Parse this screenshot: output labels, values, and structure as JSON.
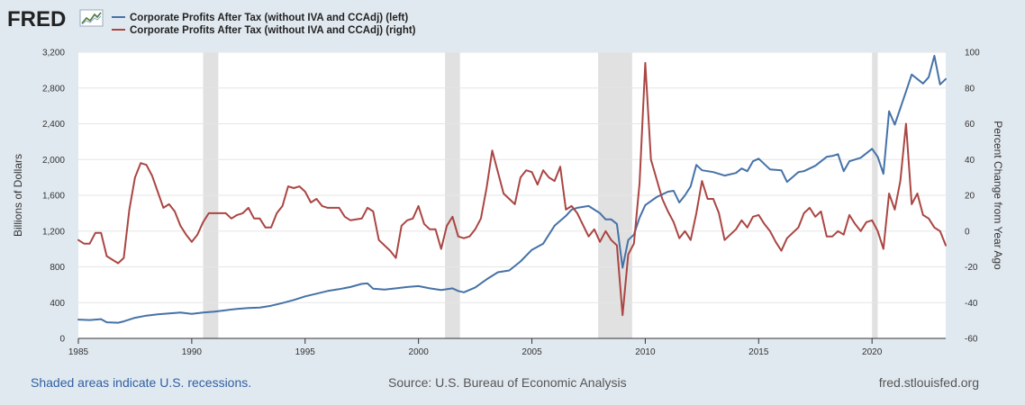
{
  "header": {
    "logo": "FRED",
    "logo_icon": "line-chart-icon"
  },
  "footer": {
    "recession_note": "Shaded areas indicate U.S. recessions.",
    "source": "Source: U.S. Bureau of Economic Analysis",
    "site": "fred.stlouisfed.org"
  },
  "colors": {
    "background": "#e1e9f0",
    "plot_background": "#ffffff",
    "left_series": "#4572a7",
    "right_series": "#aa4643",
    "recession_shade": "#e1e1e1",
    "link": "#2f5fa3"
  },
  "chart_data": {
    "type": "line",
    "ylabel": "Billions of Dollars",
    "ylabel_right": "Percent Change from Year Ago",
    "xlim": [
      1985.0,
      2023.25
    ],
    "ylim": [
      0,
      3200
    ],
    "ylim_right": [
      -60,
      100
    ],
    "x_ticks": [
      1985,
      1990,
      1995,
      2000,
      2005,
      2010,
      2015,
      2020
    ],
    "y_ticks": [
      0,
      400,
      800,
      1200,
      1600,
      2000,
      2400,
      2800,
      3200
    ],
    "y_ticks_labels": [
      "0",
      "400",
      "800",
      "1,200",
      "1,600",
      "2,000",
      "2,400",
      "2,800",
      "3,200"
    ],
    "y_ticks_right": [
      -60,
      -40,
      -20,
      0,
      20,
      40,
      60,
      80,
      100
    ],
    "grid": "horizontal",
    "legend_position": "top-left",
    "recessions": [
      [
        1990.5,
        1991.17
      ],
      [
        2001.17,
        2001.83
      ],
      [
        2007.92,
        2009.42
      ],
      [
        2020.0,
        2020.25
      ]
    ],
    "series": [
      {
        "name": "Corporate Profits After Tax (without IVA and CCAdj) (left)",
        "axis": "left",
        "points": [
          [
            1985.0,
            210
          ],
          [
            1985.5,
            205
          ],
          [
            1986.0,
            215
          ],
          [
            1986.25,
            180
          ],
          [
            1986.75,
            175
          ],
          [
            1987.0,
            190
          ],
          [
            1987.5,
            230
          ],
          [
            1988.0,
            255
          ],
          [
            1988.5,
            270
          ],
          [
            1989.0,
            280
          ],
          [
            1989.5,
            290
          ],
          [
            1990.0,
            275
          ],
          [
            1990.5,
            290
          ],
          [
            1991.0,
            300
          ],
          [
            1991.5,
            315
          ],
          [
            1992.0,
            330
          ],
          [
            1992.5,
            340
          ],
          [
            1993.0,
            345
          ],
          [
            1993.5,
            365
          ],
          [
            1994.0,
            395
          ],
          [
            1994.5,
            430
          ],
          [
            1995.0,
            470
          ],
          [
            1995.5,
            500
          ],
          [
            1996.0,
            530
          ],
          [
            1996.5,
            550
          ],
          [
            1997.0,
            575
          ],
          [
            1997.5,
            610
          ],
          [
            1997.75,
            615
          ],
          [
            1998.0,
            555
          ],
          [
            1998.5,
            545
          ],
          [
            1999.0,
            560
          ],
          [
            1999.5,
            575
          ],
          [
            2000.0,
            585
          ],
          [
            2000.5,
            560
          ],
          [
            2001.0,
            540
          ],
          [
            2001.5,
            560
          ],
          [
            2001.75,
            530
          ],
          [
            2002.0,
            515
          ],
          [
            2002.5,
            570
          ],
          [
            2003.0,
            660
          ],
          [
            2003.5,
            740
          ],
          [
            2004.0,
            760
          ],
          [
            2004.5,
            860
          ],
          [
            2005.0,
            990
          ],
          [
            2005.5,
            1060
          ],
          [
            2006.0,
            1260
          ],
          [
            2006.5,
            1370
          ],
          [
            2006.75,
            1440
          ],
          [
            2007.0,
            1460
          ],
          [
            2007.5,
            1480
          ],
          [
            2007.75,
            1440
          ],
          [
            2008.0,
            1400
          ],
          [
            2008.25,
            1330
          ],
          [
            2008.5,
            1330
          ],
          [
            2008.75,
            1280
          ],
          [
            2009.0,
            790
          ],
          [
            2009.25,
            1100
          ],
          [
            2009.5,
            1160
          ],
          [
            2009.75,
            1350
          ],
          [
            2010.0,
            1490
          ],
          [
            2010.5,
            1580
          ],
          [
            2011.0,
            1640
          ],
          [
            2011.25,
            1650
          ],
          [
            2011.5,
            1520
          ],
          [
            2011.75,
            1600
          ],
          [
            2012.0,
            1700
          ],
          [
            2012.25,
            1940
          ],
          [
            2012.5,
            1880
          ],
          [
            2013.0,
            1860
          ],
          [
            2013.5,
            1820
          ],
          [
            2014.0,
            1850
          ],
          [
            2014.25,
            1900
          ],
          [
            2014.5,
            1870
          ],
          [
            2014.75,
            1980
          ],
          [
            2015.0,
            2010
          ],
          [
            2015.5,
            1890
          ],
          [
            2016.0,
            1880
          ],
          [
            2016.25,
            1750
          ],
          [
            2016.75,
            1860
          ],
          [
            2017.0,
            1870
          ],
          [
            2017.5,
            1930
          ],
          [
            2018.0,
            2030
          ],
          [
            2018.25,
            2040
          ],
          [
            2018.5,
            2060
          ],
          [
            2018.75,
            1870
          ],
          [
            2019.0,
            1980
          ],
          [
            2019.5,
            2020
          ],
          [
            2020.0,
            2120
          ],
          [
            2020.25,
            2030
          ],
          [
            2020.5,
            1840
          ],
          [
            2020.75,
            2540
          ],
          [
            2021.0,
            2390
          ],
          [
            2021.5,
            2760
          ],
          [
            2021.75,
            2950
          ],
          [
            2022.0,
            2900
          ],
          [
            2022.25,
            2850
          ],
          [
            2022.5,
            2920
          ],
          [
            2022.75,
            3160
          ],
          [
            2023.0,
            2840
          ],
          [
            2023.25,
            2900
          ]
        ]
      },
      {
        "name": "Corporate Profits After Tax (without IVA and CCAdj) (right)",
        "axis": "right",
        "points": [
          [
            1985.0,
            -5
          ],
          [
            1985.25,
            -7
          ],
          [
            1985.5,
            -7
          ],
          [
            1985.75,
            -1
          ],
          [
            1986.0,
            -1
          ],
          [
            1986.25,
            -14
          ],
          [
            1986.75,
            -18
          ],
          [
            1987.0,
            -15
          ],
          [
            1987.25,
            12
          ],
          [
            1987.5,
            30
          ],
          [
            1987.75,
            38
          ],
          [
            1988.0,
            37
          ],
          [
            1988.25,
            31
          ],
          [
            1988.5,
            22
          ],
          [
            1988.75,
            13
          ],
          [
            1989.0,
            15
          ],
          [
            1989.25,
            11
          ],
          [
            1989.5,
            3
          ],
          [
            1989.75,
            -2
          ],
          [
            1990.0,
            -6
          ],
          [
            1990.25,
            -2
          ],
          [
            1990.5,
            5
          ],
          [
            1990.75,
            10
          ],
          [
            1991.0,
            10
          ],
          [
            1991.5,
            10
          ],
          [
            1991.75,
            7
          ],
          [
            1992.0,
            9
          ],
          [
            1992.25,
            10
          ],
          [
            1992.5,
            13
          ],
          [
            1992.75,
            7
          ],
          [
            1993.0,
            7
          ],
          [
            1993.25,
            2
          ],
          [
            1993.5,
            2
          ],
          [
            1993.75,
            10
          ],
          [
            1994.0,
            14
          ],
          [
            1994.25,
            25
          ],
          [
            1994.5,
            24
          ],
          [
            1994.75,
            25
          ],
          [
            1995.0,
            22
          ],
          [
            1995.25,
            16
          ],
          [
            1995.5,
            18
          ],
          [
            1995.75,
            14
          ],
          [
            1996.0,
            13
          ],
          [
            1996.5,
            13
          ],
          [
            1996.75,
            8
          ],
          [
            1997.0,
            6
          ],
          [
            1997.5,
            7
          ],
          [
            1997.75,
            13
          ],
          [
            1998.0,
            11
          ],
          [
            1998.25,
            -5
          ],
          [
            1998.75,
            -11
          ],
          [
            1999.0,
            -15
          ],
          [
            1999.25,
            3
          ],
          [
            1999.5,
            6
          ],
          [
            1999.75,
            7
          ],
          [
            2000.0,
            14
          ],
          [
            2000.25,
            4
          ],
          [
            2000.5,
            1
          ],
          [
            2000.75,
            1
          ],
          [
            2001.0,
            -10
          ],
          [
            2001.25,
            3
          ],
          [
            2001.5,
            8
          ],
          [
            2001.75,
            -3
          ],
          [
            2002.0,
            -4
          ],
          [
            2002.25,
            -3
          ],
          [
            2002.5,
            1
          ],
          [
            2002.75,
            7
          ],
          [
            2003.0,
            24
          ],
          [
            2003.25,
            45
          ],
          [
            2003.5,
            33
          ],
          [
            2003.75,
            21
          ],
          [
            2004.0,
            18
          ],
          [
            2004.25,
            15
          ],
          [
            2004.5,
            30
          ],
          [
            2004.75,
            34
          ],
          [
            2005.0,
            33
          ],
          [
            2005.25,
            26
          ],
          [
            2005.5,
            34
          ],
          [
            2005.75,
            30
          ],
          [
            2006.0,
            28
          ],
          [
            2006.25,
            36
          ],
          [
            2006.5,
            12
          ],
          [
            2006.75,
            14
          ],
          [
            2007.0,
            10
          ],
          [
            2007.5,
            -3
          ],
          [
            2007.75,
            1
          ],
          [
            2008.0,
            -6
          ],
          [
            2008.25,
            0
          ],
          [
            2008.5,
            -5
          ],
          [
            2008.75,
            -8
          ],
          [
            2009.0,
            -47
          ],
          [
            2009.25,
            -13
          ],
          [
            2009.5,
            -7
          ],
          [
            2009.75,
            27
          ],
          [
            2010.0,
            94
          ],
          [
            2010.25,
            40
          ],
          [
            2010.5,
            29
          ],
          [
            2010.75,
            18
          ],
          [
            2011.0,
            11
          ],
          [
            2011.25,
            5
          ],
          [
            2011.5,
            -4
          ],
          [
            2011.75,
            0
          ],
          [
            2012.0,
            -5
          ],
          [
            2012.25,
            10
          ],
          [
            2012.5,
            28
          ],
          [
            2012.75,
            18
          ],
          [
            2013.0,
            18
          ],
          [
            2013.25,
            10
          ],
          [
            2013.5,
            -5
          ],
          [
            2013.75,
            -2
          ],
          [
            2014.0,
            1
          ],
          [
            2014.25,
            6
          ],
          [
            2014.5,
            2
          ],
          [
            2014.75,
            8
          ],
          [
            2015.0,
            9
          ],
          [
            2015.25,
            4
          ],
          [
            2015.5,
            0
          ],
          [
            2015.75,
            -6
          ],
          [
            2016.0,
            -11
          ],
          [
            2016.25,
            -4
          ],
          [
            2016.5,
            -1
          ],
          [
            2016.75,
            2
          ],
          [
            2017.0,
            10
          ],
          [
            2017.25,
            13
          ],
          [
            2017.5,
            8
          ],
          [
            2017.75,
            11
          ],
          [
            2018.0,
            -3
          ],
          [
            2018.25,
            -3
          ],
          [
            2018.5,
            0
          ],
          [
            2018.75,
            -2
          ],
          [
            2019.0,
            9
          ],
          [
            2019.25,
            4
          ],
          [
            2019.5,
            0
          ],
          [
            2019.75,
            5
          ],
          [
            2020.0,
            6
          ],
          [
            2020.25,
            0
          ],
          [
            2020.5,
            -10
          ],
          [
            2020.75,
            21
          ],
          [
            2021.0,
            12
          ],
          [
            2021.25,
            28
          ],
          [
            2021.5,
            60
          ],
          [
            2021.75,
            15
          ],
          [
            2022.0,
            21
          ],
          [
            2022.25,
            9
          ],
          [
            2022.5,
            7
          ],
          [
            2022.75,
            2
          ],
          [
            2023.0,
            0
          ],
          [
            2023.25,
            -8
          ]
        ]
      }
    ]
  }
}
